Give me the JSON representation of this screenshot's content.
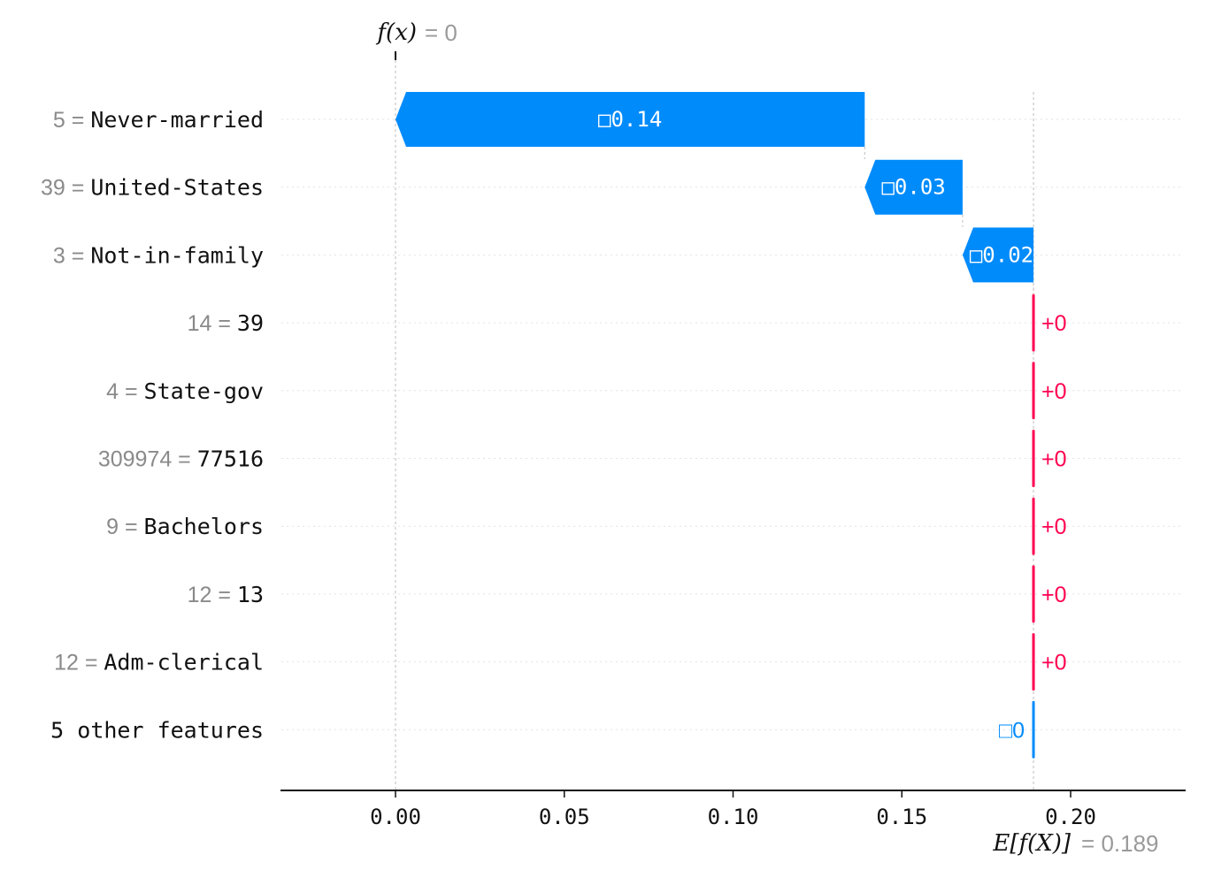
{
  "chart_data": {
    "type": "waterfall",
    "top_annotation": {
      "label": "f(x)",
      "equals": "= 0",
      "value": 0
    },
    "bottom_annotation": {
      "label": "E[f(X)]",
      "equals": "= 0.189",
      "value": 0.189
    },
    "base_value": 0.189,
    "output_value": 0,
    "xlim": [
      -0.032,
      0.222
    ],
    "xticks": [
      0.0,
      0.05,
      0.1,
      0.15,
      0.2
    ],
    "xtick_labels": [
      "0.00",
      "0.05",
      "0.10",
      "0.15",
      "0.20"
    ],
    "features": [
      {
        "value": "5",
        "name": "Never-married",
        "contribution": -0.139,
        "label": "□0.14"
      },
      {
        "value": "39",
        "name": "United-States",
        "contribution": -0.029,
        "label": "□0.03"
      },
      {
        "value": "3",
        "name": "Not-in-family",
        "contribution": -0.021,
        "label": "□0.02"
      },
      {
        "value": "14",
        "name": "39",
        "contribution": 0.0,
        "label": "+0"
      },
      {
        "value": "4",
        "name": "State-gov",
        "contribution": 0.0,
        "label": "+0"
      },
      {
        "value": "309974",
        "name": "77516",
        "contribution": 0.0,
        "label": "+0"
      },
      {
        "value": "9",
        "name": "Bachelors",
        "contribution": 0.0,
        "label": "+0"
      },
      {
        "value": "12",
        "name": "13",
        "contribution": 0.0,
        "label": "+0"
      },
      {
        "value": "12",
        "name": "Adm-clerical",
        "contribution": 0.0,
        "label": "+0"
      },
      {
        "value": "",
        "name": "5 other features",
        "contribution": -0.0,
        "label": "□0"
      }
    ],
    "colors": {
      "negative": "#008bfb",
      "positive": "#ff0051",
      "axis": "#111111",
      "grid": "#d0d0d0"
    }
  }
}
